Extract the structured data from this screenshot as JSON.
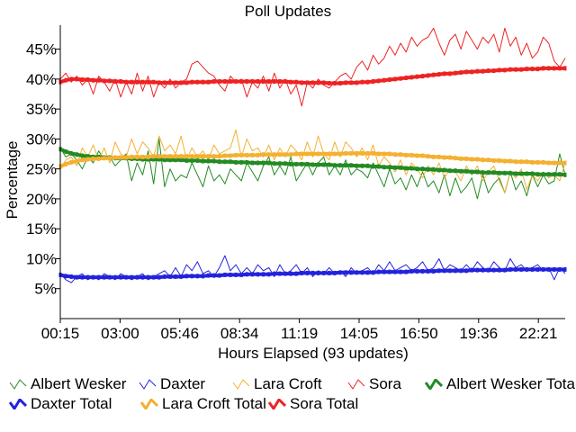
{
  "chart_data": {
    "type": "line",
    "title": "Poll Updates",
    "xlabel": "Hours Elapsed (93 updates)",
    "ylabel": "Percentage",
    "x_tick_labels": [
      "00:15",
      "03:00",
      "05:46",
      "08:34",
      "11:19",
      "14:05",
      "16:50",
      "19:36",
      "22:21"
    ],
    "x_range_hours": [
      0.25,
      23.7
    ],
    "ylim": [
      0,
      49
    ],
    "y_ticks": [
      5,
      10,
      15,
      20,
      25,
      30,
      35,
      40,
      45
    ],
    "y_tick_suffix": "%",
    "updates": 93,
    "series": [
      {
        "name": "Albert Wesker",
        "color": "#228b22",
        "style": "thin",
        "values": [
          28.5,
          27.0,
          27.5,
          26.5,
          25.0,
          27.0,
          26.0,
          28.0,
          26.5,
          27.0,
          25.5,
          26.5,
          27.5,
          23.0,
          26.0,
          24.0,
          28.0,
          22.5,
          30.0,
          22.0,
          25.0,
          23.0,
          24.0,
          23.5,
          26.0,
          24.0,
          22.0,
          25.5,
          23.0,
          24.0,
          22.5,
          25.0,
          24.0,
          23.0,
          26.0,
          24.5,
          23.0,
          25.5,
          27.0,
          24.0,
          25.5,
          24.0,
          27.0,
          23.0,
          24.5,
          26.0,
          24.0,
          26.0,
          27.0,
          24.0,
          25.5,
          24.0,
          26.5,
          24.0,
          25.0,
          24.5,
          23.5,
          26.0,
          24.0,
          22.0,
          25.0,
          22.5,
          23.5,
          21.5,
          24.0,
          22.0,
          24.5,
          22.0,
          23.0,
          21.0,
          24.0,
          20.5,
          23.5,
          21.0,
          22.0,
          23.5,
          20.0,
          24.0,
          21.0,
          22.5,
          23.5,
          21.0,
          24.5,
          21.5,
          23.0,
          20.5,
          24.0,
          22.0,
          24.0,
          22.5,
          23.0,
          27.5,
          24.0
        ]
      },
      {
        "name": "Daxter",
        "color": "#2222dd",
        "style": "thin",
        "values": [
          7.5,
          6.5,
          6.0,
          7.0,
          7.5,
          6.5,
          7.0,
          6.5,
          7.5,
          7.0,
          6.5,
          7.5,
          7.0,
          6.5,
          7.0,
          7.5,
          6.5,
          7.0,
          7.5,
          8.0,
          7.0,
          8.5,
          7.0,
          9.0,
          8.0,
          9.5,
          7.5,
          8.0,
          7.0,
          8.5,
          10.5,
          8.0,
          9.0,
          7.5,
          8.5,
          7.5,
          9.0,
          8.0,
          8.5,
          7.0,
          9.0,
          7.5,
          8.0,
          9.0,
          7.5,
          8.5,
          7.0,
          8.0,
          7.5,
          8.5,
          7.5,
          8.0,
          7.0,
          8.5,
          7.5,
          8.0,
          8.5,
          7.5,
          9.0,
          8.0,
          9.5,
          8.0,
          8.5,
          9.0,
          8.0,
          8.5,
          9.5,
          8.0,
          8.5,
          10.0,
          8.0,
          9.0,
          8.5,
          8.0,
          9.0,
          8.0,
          9.5,
          8.5,
          8.0,
          9.5,
          8.5,
          8.0,
          10.0,
          8.5,
          9.0,
          8.0,
          8.5,
          9.0,
          8.0,
          8.5,
          6.5,
          8.5,
          7.5
        ]
      },
      {
        "name": "Lara Croft",
        "color": "#f4b030",
        "style": "thin",
        "values": [
          25.0,
          26.5,
          27.0,
          25.5,
          28.5,
          27.0,
          29.0,
          26.5,
          28.5,
          26.0,
          29.5,
          27.5,
          27.0,
          30.0,
          27.5,
          29.5,
          28.5,
          27.0,
          30.5,
          28.0,
          29.0,
          27.5,
          30.5,
          26.5,
          28.5,
          27.0,
          28.0,
          26.5,
          29.0,
          27.5,
          28.0,
          28.5,
          31.5,
          27.0,
          30.0,
          28.0,
          28.5,
          27.0,
          29.0,
          26.5,
          28.5,
          27.0,
          29.0,
          28.0,
          26.5,
          29.5,
          27.0,
          30.5,
          27.5,
          26.5,
          29.5,
          27.0,
          29.5,
          28.5,
          27.0,
          28.5,
          26.5,
          29.0,
          25.5,
          27.0,
          26.0,
          24.5,
          26.5,
          24.0,
          26.0,
          25.0,
          23.5,
          25.5,
          24.0,
          26.0,
          23.5,
          25.0,
          24.5,
          23.0,
          25.5,
          24.0,
          25.5,
          23.0,
          24.5,
          25.5,
          23.0,
          21.0,
          24.5,
          23.5,
          25.0,
          21.5,
          24.0,
          23.0,
          24.5,
          23.5,
          24.0,
          23.0,
          26.0
        ]
      },
      {
        "name": "Sora",
        "color": "#ee2222",
        "style": "thin",
        "values": [
          40.0,
          41.0,
          39.5,
          40.5,
          39.0,
          40.0,
          37.5,
          40.5,
          39.5,
          38.0,
          40.0,
          37.0,
          39.5,
          37.5,
          41.0,
          38.0,
          40.5,
          37.0,
          39.5,
          38.5,
          40.0,
          38.5,
          39.5,
          40.0,
          42.5,
          43.0,
          42.0,
          41.0,
          40.5,
          39.0,
          38.0,
          40.5,
          39.5,
          40.0,
          37.0,
          39.5,
          38.5,
          40.5,
          38.0,
          41.0,
          38.5,
          40.0,
          37.5,
          39.0,
          35.5,
          39.5,
          38.5,
          40.0,
          39.0,
          38.5,
          39.5,
          40.5,
          41.0,
          40.0,
          42.0,
          43.0,
          41.5,
          44.0,
          42.5,
          43.5,
          45.5,
          44.0,
          46.0,
          44.5,
          47.0,
          45.5,
          46.5,
          47.0,
          48.5,
          46.0,
          44.0,
          46.5,
          47.5,
          45.0,
          48.0,
          46.5,
          45.0,
          47.0,
          46.0,
          47.5,
          44.5,
          48.5,
          45.5,
          47.0,
          44.0,
          46.0,
          43.5,
          44.5,
          47.0,
          46.0,
          43.0,
          42.0,
          43.5
        ]
      },
      {
        "name": "Albert Wesker Total",
        "color": "#228b22",
        "style": "thick",
        "values": [
          28.3,
          27.9,
          27.6,
          27.4,
          27.2,
          27.1,
          27.0,
          27.0,
          26.9,
          26.9,
          26.8,
          26.8,
          26.8,
          26.7,
          26.7,
          26.6,
          26.6,
          26.6,
          26.6,
          26.5,
          26.5,
          26.5,
          26.5,
          26.4,
          26.4,
          26.4,
          26.3,
          26.3,
          26.3,
          26.2,
          26.2,
          26.2,
          26.1,
          26.1,
          26.1,
          26.0,
          26.0,
          26.0,
          26.0,
          25.9,
          25.9,
          25.9,
          25.8,
          25.8,
          25.8,
          25.8,
          25.7,
          25.7,
          25.7,
          25.7,
          25.6,
          25.6,
          25.6,
          25.6,
          25.5,
          25.5,
          25.5,
          25.4,
          25.4,
          25.3,
          25.3,
          25.2,
          25.2,
          25.1,
          25.1,
          25.0,
          25.0,
          24.9,
          24.9,
          24.8,
          24.8,
          24.7,
          24.7,
          24.6,
          24.6,
          24.5,
          24.5,
          24.4,
          24.4,
          24.4,
          24.3,
          24.3,
          24.3,
          24.2,
          24.2,
          24.2,
          24.2,
          24.1,
          24.1,
          24.1,
          24.1,
          24.1,
          24.0
        ]
      },
      {
        "name": "Daxter Total",
        "color": "#2222dd",
        "style": "thick",
        "values": [
          7.3,
          7.1,
          7.0,
          6.9,
          6.9,
          6.9,
          6.9,
          6.9,
          6.9,
          6.9,
          6.9,
          6.9,
          6.9,
          6.9,
          6.9,
          6.9,
          6.9,
          6.9,
          6.9,
          7.0,
          7.0,
          7.0,
          7.0,
          7.1,
          7.1,
          7.1,
          7.1,
          7.2,
          7.2,
          7.2,
          7.3,
          7.3,
          7.3,
          7.3,
          7.4,
          7.4,
          7.4,
          7.4,
          7.4,
          7.5,
          7.5,
          7.5,
          7.5,
          7.5,
          7.6,
          7.6,
          7.6,
          7.6,
          7.6,
          7.6,
          7.6,
          7.7,
          7.7,
          7.7,
          7.7,
          7.7,
          7.7,
          7.7,
          7.8,
          7.8,
          7.8,
          7.8,
          7.8,
          7.8,
          7.9,
          7.9,
          7.9,
          7.9,
          7.9,
          8.0,
          8.0,
          8.0,
          8.0,
          8.0,
          8.0,
          8.1,
          8.1,
          8.1,
          8.1,
          8.1,
          8.1,
          8.1,
          8.2,
          8.2,
          8.2,
          8.2,
          8.2,
          8.2,
          8.2,
          8.2,
          8.2,
          8.2,
          8.2
        ]
      },
      {
        "name": "Lara Croft Total",
        "color": "#f4b030",
        "style": "thick",
        "values": [
          25.4,
          25.8,
          26.1,
          26.3,
          26.5,
          26.6,
          26.7,
          26.7,
          26.8,
          26.8,
          26.9,
          26.9,
          26.9,
          27.0,
          27.0,
          27.0,
          27.0,
          27.1,
          27.1,
          27.1,
          27.1,
          27.1,
          27.1,
          27.1,
          27.1,
          27.1,
          27.1,
          27.1,
          27.1,
          27.1,
          27.2,
          27.2,
          27.3,
          27.3,
          27.3,
          27.3,
          27.3,
          27.4,
          27.4,
          27.4,
          27.4,
          27.4,
          27.4,
          27.5,
          27.5,
          27.5,
          27.5,
          27.5,
          27.5,
          27.5,
          27.5,
          27.5,
          27.6,
          27.6,
          27.6,
          27.6,
          27.6,
          27.6,
          27.5,
          27.5,
          27.5,
          27.4,
          27.4,
          27.3,
          27.3,
          27.2,
          27.2,
          27.1,
          27.0,
          27.0,
          26.9,
          26.9,
          26.8,
          26.7,
          26.7,
          26.6,
          26.6,
          26.5,
          26.5,
          26.4,
          26.4,
          26.3,
          26.3,
          26.2,
          26.2,
          26.2,
          26.1,
          26.1,
          26.1,
          26.0,
          26.0,
          26.0,
          26.0
        ]
      },
      {
        "name": "Sora Total",
        "color": "#ee2222",
        "style": "thick",
        "values": [
          39.5,
          39.8,
          40.0,
          40.0,
          39.9,
          39.9,
          39.8,
          39.8,
          39.7,
          39.7,
          39.6,
          39.6,
          39.5,
          39.5,
          39.5,
          39.5,
          39.5,
          39.5,
          39.4,
          39.4,
          39.4,
          39.4,
          39.4,
          39.4,
          39.5,
          39.5,
          39.5,
          39.5,
          39.6,
          39.6,
          39.6,
          39.6,
          39.6,
          39.6,
          39.6,
          39.6,
          39.6,
          39.6,
          39.6,
          39.6,
          39.6,
          39.6,
          39.5,
          39.5,
          39.4,
          39.4,
          39.4,
          39.4,
          39.4,
          39.3,
          39.3,
          39.3,
          39.4,
          39.4,
          39.4,
          39.5,
          39.5,
          39.6,
          39.7,
          39.8,
          39.9,
          40.0,
          40.1,
          40.2,
          40.3,
          40.4,
          40.5,
          40.6,
          40.7,
          40.8,
          40.9,
          40.9,
          41.0,
          41.1,
          41.2,
          41.2,
          41.3,
          41.3,
          41.4,
          41.4,
          41.5,
          41.5,
          41.6,
          41.6,
          41.6,
          41.7,
          41.7,
          41.7,
          41.8,
          41.8,
          41.8,
          41.8,
          41.8
        ]
      }
    ]
  }
}
